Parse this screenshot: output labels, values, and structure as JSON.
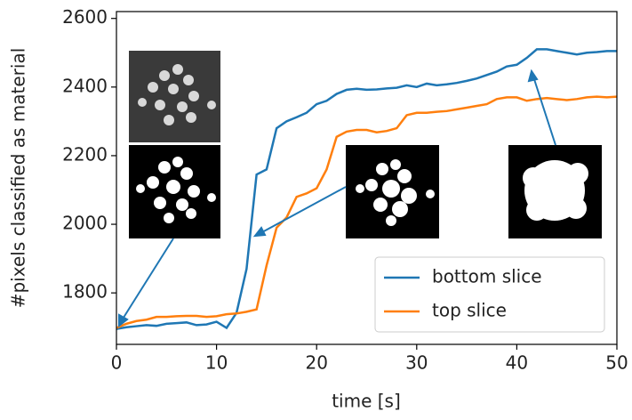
{
  "chart_data": {
    "type": "line",
    "x_label": "time [s]",
    "y_label": "#pixels classified as material",
    "x": [
      0,
      1,
      2,
      3,
      4,
      5,
      6,
      7,
      8,
      9,
      10,
      11,
      12,
      13,
      14,
      15,
      16,
      17,
      18,
      19,
      20,
      21,
      22,
      23,
      24,
      25,
      26,
      27,
      28,
      29,
      30,
      31,
      32,
      33,
      34,
      35,
      36,
      37,
      38,
      39,
      40,
      41,
      42,
      43,
      44,
      45,
      46,
      47,
      48,
      49,
      50
    ],
    "series": [
      {
        "name": "bottom slice",
        "color": "#1f77b4",
        "values": [
          1695,
          1700,
          1703,
          1706,
          1704,
          1710,
          1712,
          1714,
          1706,
          1708,
          1716,
          1698,
          1742,
          1870,
          2145,
          2160,
          2280,
          2300,
          2312,
          2325,
          2350,
          2360,
          2380,
          2392,
          2395,
          2392,
          2393,
          2396,
          2398,
          2405,
          2400,
          2410,
          2405,
          2408,
          2412,
          2418,
          2425,
          2435,
          2445,
          2460,
          2465,
          2485,
          2510,
          2510,
          2505,
          2500,
          2495,
          2500,
          2502,
          2505,
          2505
        ]
      },
      {
        "name": "top slice",
        "color": "#ff7f0e",
        "values": [
          1698,
          1710,
          1718,
          1722,
          1730,
          1730,
          1732,
          1733,
          1733,
          1730,
          1732,
          1738,
          1740,
          1745,
          1752,
          1880,
          1990,
          2020,
          2080,
          2090,
          2105,
          2160,
          2255,
          2270,
          2275,
          2275,
          2268,
          2272,
          2280,
          2318,
          2325,
          2325,
          2328,
          2330,
          2335,
          2340,
          2345,
          2350,
          2365,
          2370,
          2370,
          2360,
          2365,
          2368,
          2365,
          2362,
          2365,
          2370,
          2372,
          2370,
          2372
        ]
      }
    ],
    "xlim": [
      0,
      50
    ],
    "xticks": [
      0,
      10,
      20,
      30,
      40,
      50
    ],
    "ylim": [
      1650,
      2620
    ],
    "yticks": [
      1800,
      2000,
      2200,
      2400,
      2600
    ],
    "legend": "lower right"
  }
}
